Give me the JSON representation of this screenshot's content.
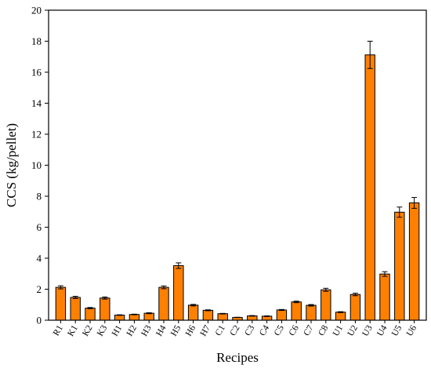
{
  "chart_data": {
    "type": "bar",
    "title": "",
    "xlabel": "Recipes",
    "ylabel": "CCS (kg/pellet)",
    "ylim": [
      0,
      20
    ],
    "yticks": [
      0,
      2,
      4,
      6,
      8,
      10,
      12,
      14,
      16,
      18,
      20
    ],
    "grid": false,
    "bar_color": "#ff8000",
    "bar_edge_color": "#000000",
    "categories": [
      "R1",
      "K1",
      "K2",
      "K3",
      "H1",
      "H2",
      "H3",
      "H4",
      "H5",
      "H6",
      "H7",
      "C1",
      "C2",
      "C3",
      "C4",
      "C5",
      "C6",
      "C7",
      "C8",
      "U1",
      "U2",
      "U3",
      "U4",
      "U5",
      "U6"
    ],
    "values": [
      2.12,
      1.47,
      0.78,
      1.43,
      0.33,
      0.37,
      0.45,
      2.12,
      3.52,
      0.97,
      0.64,
      0.42,
      0.18,
      0.28,
      0.26,
      0.66,
      1.18,
      0.96,
      1.96,
      0.52,
      1.66,
      17.12,
      2.98,
      6.97,
      7.57
    ],
    "errors": [
      0.1,
      0.07,
      0.04,
      0.07,
      0.02,
      0.02,
      0.03,
      0.09,
      0.18,
      0.05,
      0.03,
      0.02,
      0.01,
      0.02,
      0.02,
      0.03,
      0.05,
      0.05,
      0.1,
      0.03,
      0.08,
      0.88,
      0.15,
      0.33,
      0.35
    ]
  }
}
